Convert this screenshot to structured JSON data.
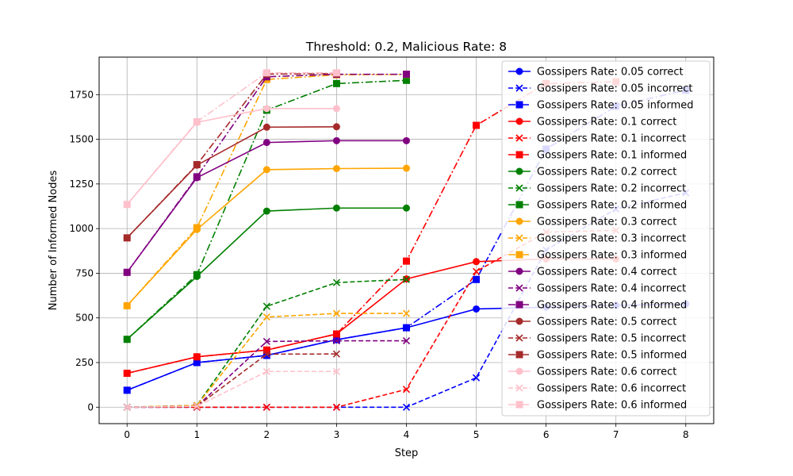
{
  "chart_data": {
    "type": "line",
    "title": "Threshold: 0.2, Malicious Rate: 8",
    "xlabel": "Step",
    "ylabel": "Number of Informed Nodes",
    "xlim": [
      -0.4,
      8.4
    ],
    "ylim": [
      -92,
      1960
    ],
    "xticks": [
      0,
      1,
      2,
      3,
      4,
      5,
      6,
      7,
      8
    ],
    "yticks": [
      0,
      250,
      500,
      750,
      1000,
      1250,
      1500,
      1750
    ],
    "grid": true,
    "legend": "top-right",
    "series": [
      {
        "name": "Gossipers Rate: 0.05 correct",
        "color": "#0000ff",
        "marker": "circle",
        "dash": "solid",
        "x": [
          0,
          1,
          2,
          3,
          4,
          5,
          6,
          7,
          8
        ],
        "y": [
          95,
          250,
          290,
          378,
          445,
          550,
          560,
          570,
          578
        ]
      },
      {
        "name": "Gossipers Rate: 0.05 incorrect",
        "color": "#0000ff",
        "marker": "x",
        "dash": "dashed",
        "x": [
          0,
          1,
          2,
          3,
          4,
          5,
          6,
          7,
          8
        ],
        "y": [
          0,
          0,
          0,
          0,
          0,
          165,
          880,
          1110,
          1200
        ]
      },
      {
        "name": "Gossipers Rate: 0.05 informed",
        "color": "#0000ff",
        "marker": "square",
        "dash": "dashdot",
        "x": [
          0,
          1,
          2,
          3,
          4,
          5,
          6,
          7,
          8
        ],
        "y": [
          95,
          250,
          290,
          378,
          445,
          715,
          1445,
          1685,
          1775
        ]
      },
      {
        "name": "Gossipers Rate: 0.1 correct",
        "color": "#ff0000",
        "marker": "circle",
        "dash": "solid",
        "x": [
          0,
          1,
          2,
          3,
          4,
          5,
          6,
          7
        ],
        "y": [
          190,
          282,
          320,
          410,
          718,
          815,
          830,
          830
        ]
      },
      {
        "name": "Gossipers Rate: 0.1 incorrect",
        "color": "#ff0000",
        "marker": "x",
        "dash": "dashed",
        "x": [
          0,
          1,
          2,
          3,
          4,
          5,
          6,
          7
        ],
        "y": [
          0,
          0,
          0,
          0,
          100,
          760,
          980,
          990
        ]
      },
      {
        "name": "Gossipers Rate: 0.1 informed",
        "color": "#ff0000",
        "marker": "square",
        "dash": "dashdot",
        "x": [
          0,
          1,
          2,
          3,
          4,
          5,
          6,
          7
        ],
        "y": [
          190,
          282,
          320,
          410,
          818,
          1578,
          1812,
          1822
        ]
      },
      {
        "name": "Gossipers Rate: 0.2 correct",
        "color": "#008000",
        "marker": "circle",
        "dash": "solid",
        "x": [
          0,
          1,
          2,
          3,
          4
        ],
        "y": [
          380,
          732,
          1098,
          1115,
          1115
        ]
      },
      {
        "name": "Gossipers Rate: 0.2 incorrect",
        "color": "#008000",
        "marker": "x",
        "dash": "dashed",
        "x": [
          0,
          1,
          2,
          3,
          4
        ],
        "y": [
          0,
          10,
          565,
          698,
          715
        ]
      },
      {
        "name": "Gossipers Rate: 0.2 informed",
        "color": "#008000",
        "marker": "square",
        "dash": "dashdot",
        "x": [
          0,
          1,
          2,
          3,
          4
        ],
        "y": [
          380,
          742,
          1663,
          1812,
          1830
        ]
      },
      {
        "name": "Gossipers Rate: 0.3 correct",
        "color": "#ffa500",
        "marker": "circle",
        "dash": "solid",
        "x": [
          0,
          1,
          2,
          3,
          4
        ],
        "y": [
          568,
          995,
          1330,
          1336,
          1338
        ]
      },
      {
        "name": "Gossipers Rate: 0.3 incorrect",
        "color": "#ffa500",
        "marker": "x",
        "dash": "dashed",
        "x": [
          0,
          1,
          2,
          3,
          4
        ],
        "y": [
          0,
          10,
          505,
          525,
          525
        ]
      },
      {
        "name": "Gossipers Rate: 0.3 informed",
        "color": "#ffa500",
        "marker": "square",
        "dash": "dashdot",
        "x": [
          0,
          1,
          2,
          3,
          4
        ],
        "y": [
          568,
          1005,
          1835,
          1861,
          1863
        ]
      },
      {
        "name": "Gossipers Rate: 0.4 correct",
        "color": "#800080",
        "marker": "circle",
        "dash": "solid",
        "x": [
          0,
          1,
          2,
          3,
          4
        ],
        "y": [
          755,
          1285,
          1482,
          1492,
          1492
        ]
      },
      {
        "name": "Gossipers Rate: 0.4 incorrect",
        "color": "#800080",
        "marker": "x",
        "dash": "dashed",
        "x": [
          0,
          1,
          2,
          3,
          4
        ],
        "y": [
          0,
          5,
          368,
          372,
          372
        ]
      },
      {
        "name": "Gossipers Rate: 0.4 informed",
        "color": "#800080",
        "marker": "square",
        "dash": "dashdot",
        "x": [
          0,
          1,
          2,
          3,
          4
        ],
        "y": [
          755,
          1290,
          1850,
          1864,
          1864
        ]
      },
      {
        "name": "Gossipers Rate: 0.5 correct",
        "color": "#a52a2a",
        "marker": "circle",
        "dash": "solid",
        "x": [
          0,
          1,
          2,
          3
        ],
        "y": [
          948,
          1355,
          1568,
          1570
        ]
      },
      {
        "name": "Gossipers Rate: 0.5 incorrect",
        "color": "#a52a2a",
        "marker": "x",
        "dash": "dashed",
        "x": [
          0,
          1,
          2,
          3
        ],
        "y": [
          0,
          5,
          297,
          298
        ]
      },
      {
        "name": "Gossipers Rate: 0.5 informed",
        "color": "#a52a2a",
        "marker": "square",
        "dash": "dashdot",
        "x": [
          0,
          1,
          2,
          3
        ],
        "y": [
          948,
          1358,
          1865,
          1868
        ]
      },
      {
        "name": "Gossipers Rate: 0.6 correct",
        "color": "#ffc0cb",
        "marker": "circle",
        "dash": "solid",
        "x": [
          0,
          1,
          2,
          3
        ],
        "y": [
          1135,
          1595,
          1672,
          1672
        ]
      },
      {
        "name": "Gossipers Rate: 0.6 incorrect",
        "color": "#ffc0cb",
        "marker": "x",
        "dash": "dashed",
        "x": [
          0,
          1,
          2,
          3
        ],
        "y": [
          0,
          5,
          200,
          200
        ]
      },
      {
        "name": "Gossipers Rate: 0.6 informed",
        "color": "#ffc0cb",
        "marker": "square",
        "dash": "dashdot",
        "x": [
          0,
          1,
          2,
          3
        ],
        "y": [
          1135,
          1598,
          1872,
          1872
        ]
      }
    ]
  }
}
